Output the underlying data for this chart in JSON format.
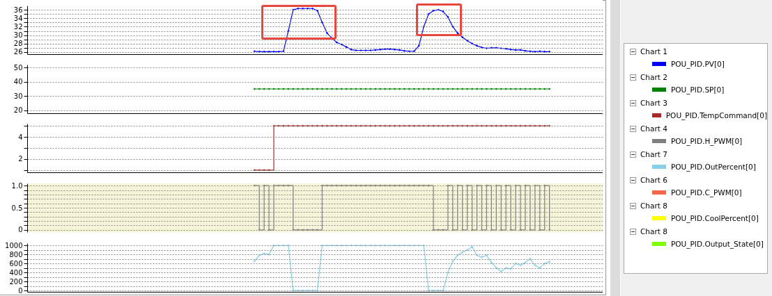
{
  "chart_data": [
    {
      "type": "line",
      "legend_title": "Chart 1",
      "legend": "right",
      "grid": "y",
      "tick_labels": "y",
      "marker": "diamond",
      "categories": [
        null,
        null,
        null,
        null,
        null,
        null,
        null,
        null,
        null,
        null,
        null,
        null,
        null,
        null,
        null,
        null,
        null,
        null,
        null,
        null,
        null,
        null,
        null,
        null,
        null,
        null,
        null,
        null,
        null,
        null,
        null,
        null,
        null,
        null,
        null,
        null,
        null,
        null,
        null,
        null,
        null,
        null,
        null,
        null,
        null,
        null,
        null,
        null,
        null,
        null,
        null,
        null,
        null,
        null,
        null,
        null,
        null,
        null,
        null,
        null,
        null,
        null,
        null,
        null,
        null,
        null,
        null,
        null,
        null,
        null,
        null,
        null,
        null,
        null,
        null,
        null,
        null,
        null,
        null,
        null,
        null,
        null,
        null,
        null,
        null,
        null,
        null,
        null,
        null,
        null,
        null,
        null,
        null,
        null,
        null,
        null,
        null,
        null,
        null,
        null,
        null,
        null,
        null,
        null,
        null,
        null,
        null,
        null,
        null,
        null,
        null,
        null,
        null,
        null,
        null,
        null,
        null,
        null,
        null,
        null
      ],
      "series": [
        {
          "name": "POU_PID.PV[0]",
          "color": "#0000ff",
          "values": [
            null,
            null,
            null,
            null,
            null,
            null,
            null,
            null,
            null,
            null,
            null,
            null,
            null,
            null,
            null,
            null,
            null,
            null,
            null,
            null,
            null,
            null,
            null,
            null,
            null,
            null,
            null,
            null,
            null,
            null,
            null,
            null,
            null,
            null,
            null,
            null,
            null,
            null,
            null,
            null,
            null,
            null,
            null,
            null,
            null,
            null,
            null,
            26.2,
            26.1,
            26.1,
            26.1,
            26.1,
            26.1,
            26.2,
            31,
            36,
            36.3,
            36.3,
            36.3,
            36.3,
            35.8,
            33,
            30.5,
            29.3,
            28.3,
            27.8,
            27.2,
            26.6,
            26.4,
            26.4,
            26.4,
            26.4,
            26.5,
            26.6,
            26.7,
            26.7,
            26.6,
            26.5,
            26.3,
            26.2,
            26.2,
            27.5,
            32,
            35,
            35.8,
            36,
            35.6,
            34.3,
            32,
            30.5,
            29.5,
            28.7,
            28,
            27.5,
            27.1,
            26.9,
            27,
            27,
            26.9,
            26.8,
            26.6,
            26.5,
            26.5,
            26.3,
            26.2,
            26.1,
            26.2,
            26.1,
            26.1,
            null,
            null,
            null,
            null,
            null,
            null,
            null,
            null,
            null,
            null,
            null
          ]
        }
      ],
      "ylim": [
        25.5,
        37
      ],
      "yticks": [
        26,
        {
          "value": 27,
          "label": null
        },
        28,
        {
          "value": 29,
          "label": null
        },
        30,
        {
          "value": 31,
          "label": null
        },
        32,
        {
          "value": 33,
          "label": null
        },
        34,
        {
          "value": 35,
          "label": null
        },
        36
      ]
    },
    {
      "type": "line",
      "legend_title": "Chart 2",
      "legend": "right",
      "grid": "y",
      "tick_labels": "y",
      "marker": "diamond",
      "categories": [
        null,
        null,
        null,
        null,
        null,
        null,
        null,
        null,
        null,
        null,
        null,
        null,
        null,
        null,
        null,
        null,
        null,
        null,
        null,
        null,
        null,
        null,
        null,
        null,
        null,
        null,
        null,
        null,
        null,
        null,
        null,
        null,
        null,
        null,
        null,
        null,
        null,
        null,
        null,
        null,
        null,
        null,
        null,
        null,
        null,
        null,
        null,
        null,
        null,
        null,
        null,
        null,
        null,
        null,
        null,
        null,
        null,
        null,
        null,
        null,
        null,
        null,
        null,
        null,
        null,
        null,
        null,
        null,
        null,
        null,
        null,
        null,
        null,
        null,
        null,
        null,
        null,
        null,
        null,
        null,
        null,
        null,
        null,
        null,
        null,
        null,
        null,
        null,
        null,
        null,
        null,
        null,
        null,
        null,
        null,
        null,
        null,
        null,
        null,
        null,
        null,
        null,
        null,
        null,
        null,
        null,
        null,
        null,
        null,
        null,
        null,
        null,
        null,
        null,
        null,
        null,
        null,
        null,
        null,
        null
      ],
      "series": [
        {
          "name": "POU_PID.SP[0]",
          "color": "#008000",
          "values": [
            null,
            null,
            null,
            null,
            null,
            null,
            null,
            null,
            null,
            null,
            null,
            null,
            null,
            null,
            null,
            null,
            null,
            null,
            null,
            null,
            null,
            null,
            null,
            null,
            null,
            null,
            null,
            null,
            null,
            null,
            null,
            null,
            null,
            null,
            null,
            null,
            null,
            null,
            null,
            null,
            null,
            null,
            null,
            null,
            null,
            null,
            null,
            35,
            35,
            35,
            35,
            35,
            35,
            35,
            35,
            35,
            35,
            35,
            35,
            35,
            35,
            35,
            35,
            35,
            35,
            35,
            35,
            35,
            35,
            35,
            35,
            35,
            35,
            35,
            35,
            35,
            35,
            35,
            35,
            35,
            35,
            35,
            35,
            35,
            35,
            35,
            35,
            35,
            35,
            35,
            35,
            35,
            35,
            35,
            35,
            35,
            35,
            35,
            35,
            35,
            35,
            35,
            35,
            35,
            35,
            35,
            35,
            35,
            35,
            null,
            null,
            null,
            null,
            null,
            null,
            null,
            null,
            null,
            null,
            null
          ]
        }
      ],
      "ylim": [
        18,
        52
      ],
      "yticks": [
        20,
        30,
        40,
        50
      ]
    },
    {
      "type": "step",
      "legend_title": "Chart 3",
      "legend": "right",
      "grid": "y",
      "tick_labels": "y",
      "marker": "diamond",
      "categories": [
        null,
        null,
        null,
        null,
        null,
        null,
        null,
        null,
        null,
        null,
        null,
        null,
        null,
        null,
        null,
        null,
        null,
        null,
        null,
        null,
        null,
        null,
        null,
        null,
        null,
        null,
        null,
        null,
        null,
        null,
        null,
        null,
        null,
        null,
        null,
        null,
        null,
        null,
        null,
        null,
        null,
        null,
        null,
        null,
        null,
        null,
        null,
        null,
        null,
        null,
        null,
        null,
        null,
        null,
        null,
        null,
        null,
        null,
        null,
        null,
        null,
        null,
        null,
        null,
        null,
        null,
        null,
        null,
        null,
        null,
        null,
        null,
        null,
        null,
        null,
        null,
        null,
        null,
        null,
        null,
        null,
        null,
        null,
        null,
        null,
        null,
        null,
        null,
        null,
        null,
        null,
        null,
        null,
        null,
        null,
        null,
        null,
        null,
        null,
        null,
        null,
        null,
        null,
        null,
        null,
        null,
        null,
        null,
        null,
        null,
        null,
        null,
        null,
        null,
        null,
        null,
        null,
        null,
        null,
        null
      ],
      "series": [
        {
          "name": "POU_PID.TempCommand[0]",
          "color": "#a52a2a",
          "values": [
            null,
            null,
            null,
            null,
            null,
            null,
            null,
            null,
            null,
            null,
            null,
            null,
            null,
            null,
            null,
            null,
            null,
            null,
            null,
            null,
            null,
            null,
            null,
            null,
            null,
            null,
            null,
            null,
            null,
            null,
            null,
            null,
            null,
            null,
            null,
            null,
            null,
            null,
            null,
            null,
            null,
            null,
            null,
            null,
            null,
            null,
            null,
            1,
            1,
            1,
            1,
            5,
            5,
            5,
            5,
            5,
            5,
            5,
            5,
            5,
            5,
            5,
            5,
            5,
            5,
            5,
            5,
            5,
            5,
            5,
            5,
            5,
            5,
            5,
            5,
            5,
            5,
            5,
            5,
            5,
            5,
            5,
            5,
            5,
            5,
            5,
            5,
            5,
            5,
            5,
            5,
            5,
            5,
            5,
            5,
            5,
            5,
            5,
            5,
            5,
            5,
            5,
            5,
            5,
            5,
            5,
            5,
            5,
            5,
            null,
            null,
            null,
            null,
            null,
            null,
            null,
            null,
            null,
            null,
            null
          ]
        }
      ],
      "ylim": [
        0.8,
        5.2
      ],
      "yticks": [
        {
          "value": 1,
          "label": null
        },
        2,
        {
          "value": 3,
          "label": null
        },
        4,
        {
          "value": 5,
          "label": null
        }
      ]
    },
    {
      "type": "step",
      "legend_title": "Chart 4",
      "legend": "right",
      "grid": "y",
      "tick_labels": "y",
      "marker": "diamond",
      "categories": [
        null,
        null,
        null,
        null,
        null,
        null,
        null,
        null,
        null,
        null,
        null,
        null,
        null,
        null,
        null,
        null,
        null,
        null,
        null,
        null,
        null,
        null,
        null,
        null,
        null,
        null,
        null,
        null,
        null,
        null,
        null,
        null,
        null,
        null,
        null,
        null,
        null,
        null,
        null,
        null,
        null,
        null,
        null,
        null,
        null,
        null,
        null,
        null,
        null,
        null,
        null,
        null,
        null,
        null,
        null,
        null,
        null,
        null,
        null,
        null,
        null,
        null,
        null,
        null,
        null,
        null,
        null,
        null,
        null,
        null,
        null,
        null,
        null,
        null,
        null,
        null,
        null,
        null,
        null,
        null,
        null,
        null,
        null,
        null,
        null,
        null,
        null,
        null,
        null,
        null,
        null,
        null,
        null,
        null,
        null,
        null,
        null,
        null,
        null,
        null,
        null,
        null,
        null,
        null,
        null,
        null,
        null,
        null,
        null,
        null,
        null,
        null,
        null,
        null,
        null,
        null,
        null,
        null,
        null,
        null
      ],
      "series": [
        {
          "name": "POU_PID.H_PWM[0]",
          "color": "#808080",
          "values": [
            null,
            null,
            null,
            null,
            null,
            null,
            null,
            null,
            null,
            null,
            null,
            null,
            null,
            null,
            null,
            null,
            null,
            null,
            null,
            null,
            null,
            null,
            null,
            null,
            null,
            null,
            null,
            null,
            null,
            null,
            null,
            null,
            null,
            null,
            null,
            null,
            null,
            null,
            null,
            null,
            null,
            null,
            null,
            null,
            null,
            null,
            null,
            1,
            0,
            1,
            0,
            1,
            1,
            1,
            1,
            0,
            0,
            0,
            0,
            0,
            0,
            1,
            1,
            1,
            1,
            1,
            1,
            1,
            1,
            1,
            1,
            1,
            1,
            1,
            1,
            1,
            1,
            1,
            1,
            1,
            1,
            1,
            1,
            1,
            0,
            0,
            0,
            1,
            0,
            1,
            0,
            1,
            0,
            1,
            0,
            1,
            0,
            1,
            0,
            1,
            0,
            1,
            0,
            1,
            0,
            1,
            0,
            1,
            0,
            null,
            null,
            null,
            null,
            null,
            null,
            null,
            null,
            null,
            null,
            null
          ]
        }
      ],
      "ylim": [
        -0.05,
        1.05
      ],
      "yticks": [
        0,
        {
          "value": 0.1,
          "label": null
        },
        {
          "value": 0.2,
          "label": null
        },
        {
          "value": 0.3,
          "label": null
        },
        {
          "value": 0.4,
          "label": null
        },
        0.5,
        {
          "value": 0.6,
          "label": null
        },
        {
          "value": 0.7,
          "label": null
        },
        {
          "value": 0.8,
          "label": null
        },
        {
          "value": 0.9,
          "label": null
        },
        {
          "value": 1,
          "label": "1.0"
        }
      ],
      "bands": [
        {
          "axis": "y",
          "from": -0.05,
          "to": 1.05,
          "color": "#f5f3d8"
        }
      ]
    },
    {
      "type": "line",
      "legend_title": "Chart 7",
      "legend": "right",
      "grid": "y",
      "tick_labels": "y",
      "marker": "diamond",
      "categories": [
        null,
        null,
        null,
        null,
        null,
        null,
        null,
        null,
        null,
        null,
        null,
        null,
        null,
        null,
        null,
        null,
        null,
        null,
        null,
        null,
        null,
        null,
        null,
        null,
        null,
        null,
        null,
        null,
        null,
        null,
        null,
        null,
        null,
        null,
        null,
        null,
        null,
        null,
        null,
        null,
        null,
        null,
        null,
        null,
        null,
        null,
        null,
        null,
        null,
        null,
        null,
        null,
        null,
        null,
        null,
        null,
        null,
        null,
        null,
        null,
        null,
        null,
        null,
        null,
        null,
        null,
        null,
        null,
        null,
        null,
        null,
        null,
        null,
        null,
        null,
        null,
        null,
        null,
        null,
        null,
        null,
        null,
        null,
        null,
        null,
        null,
        null,
        null,
        null,
        null,
        null,
        null,
        null,
        null,
        null,
        null,
        null,
        null,
        null,
        null,
        null,
        null,
        null,
        null,
        null,
        null,
        null,
        null,
        null,
        null,
        null,
        null,
        null,
        null,
        null,
        null,
        null,
        null,
        null,
        null
      ],
      "series": [
        {
          "name": "POU_PID.OutPercent[0]",
          "color": "#87ceeb",
          "values": [
            null,
            null,
            null,
            null,
            null,
            null,
            null,
            null,
            null,
            null,
            null,
            null,
            null,
            null,
            null,
            null,
            null,
            null,
            null,
            null,
            null,
            null,
            null,
            null,
            null,
            null,
            null,
            null,
            null,
            null,
            null,
            null,
            null,
            null,
            null,
            null,
            null,
            null,
            null,
            null,
            null,
            null,
            null,
            null,
            null,
            null,
            null,
            650,
            780,
            820,
            800,
            1000,
            1000,
            1000,
            1000,
            0,
            0,
            0,
            0,
            0,
            0,
            1000,
            1000,
            1000,
            1000,
            1000,
            1000,
            1000,
            1000,
            1000,
            1000,
            1000,
            1000,
            1000,
            1000,
            1000,
            1000,
            1000,
            1000,
            1000,
            1000,
            1000,
            1000,
            0,
            0,
            0,
            0,
            400,
            650,
            780,
            850,
            900,
            970,
            780,
            740,
            780,
            620,
            500,
            420,
            500,
            480,
            600,
            560,
            620,
            700,
            560,
            500,
            600,
            640,
            null,
            null,
            null,
            null,
            null,
            null,
            null,
            null,
            null,
            null,
            null
          ]
        }
      ],
      "ylim": [
        -30,
        1050
      ],
      "yticks": [
        0,
        {
          "value": 100,
          "label": null
        },
        200,
        {
          "value": 300,
          "label": null
        },
        400,
        {
          "value": 500,
          "label": null
        },
        600,
        {
          "value": 700,
          "label": null
        },
        800,
        {
          "value": 900,
          "label": null
        },
        1000
      ]
    },
    {
      "type": "other",
      "annotations": [
        "Chart 6",
        "Chart 8",
        "Chart 8"
      ],
      "series": [
        {
          "name": "POU_PID.C_PWM[0]",
          "color": "#f4694c"
        },
        {
          "name": "POU_PID.CoolPercent[0]",
          "color": "#ffff00"
        },
        {
          "name": "POU_PID.Output_State[0]",
          "color": "#80ff00"
        }
      ]
    }
  ]
}
